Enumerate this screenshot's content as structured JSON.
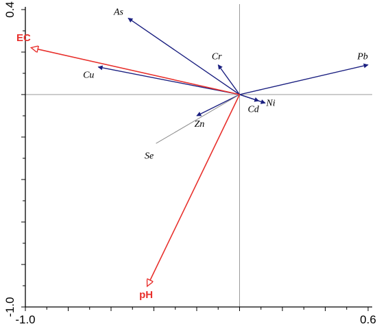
{
  "chart_data": {
    "type": "biplot",
    "title": "",
    "xlabel": "",
    "ylabel": "",
    "xlim": [
      -1.0,
      0.6
    ],
    "ylim": [
      -1.0,
      0.4
    ],
    "x_tick_labels": [
      {
        "value": -1.0,
        "label": "-1.0"
      },
      {
        "value": 0.6,
        "label": "0.6"
      }
    ],
    "y_tick_labels": [
      {
        "value": 0.4,
        "label": "0.4"
      },
      {
        "value": -1.0,
        "label": "-1.0"
      }
    ],
    "reference_lines": {
      "x": 0,
      "y": 0
    },
    "colors": {
      "species": "#1a1f80",
      "environment": "#e8302c",
      "axis": "#000000",
      "reference": "#9a9a9a"
    },
    "response_variables": [
      {
        "name": "As",
        "x": -0.52,
        "y": 0.36
      },
      {
        "name": "Cr",
        "x": -0.1,
        "y": 0.14
      },
      {
        "name": "Pb",
        "x": 0.6,
        "y": 0.14
      },
      {
        "name": "Cu",
        "x": -0.66,
        "y": 0.13
      },
      {
        "name": "Ni",
        "x": 0.12,
        "y": -0.04
      },
      {
        "name": "Cd",
        "x": 0.09,
        "y": -0.03
      },
      {
        "name": "Zn",
        "x": -0.2,
        "y": -0.1
      },
      {
        "name": "Se",
        "x": -0.39,
        "y": -0.23
      }
    ],
    "explanatory_variables": [
      {
        "name": "EC",
        "x": -0.97,
        "y": 0.22
      },
      {
        "name": "pH",
        "x": -0.43,
        "y": -0.9
      }
    ]
  }
}
